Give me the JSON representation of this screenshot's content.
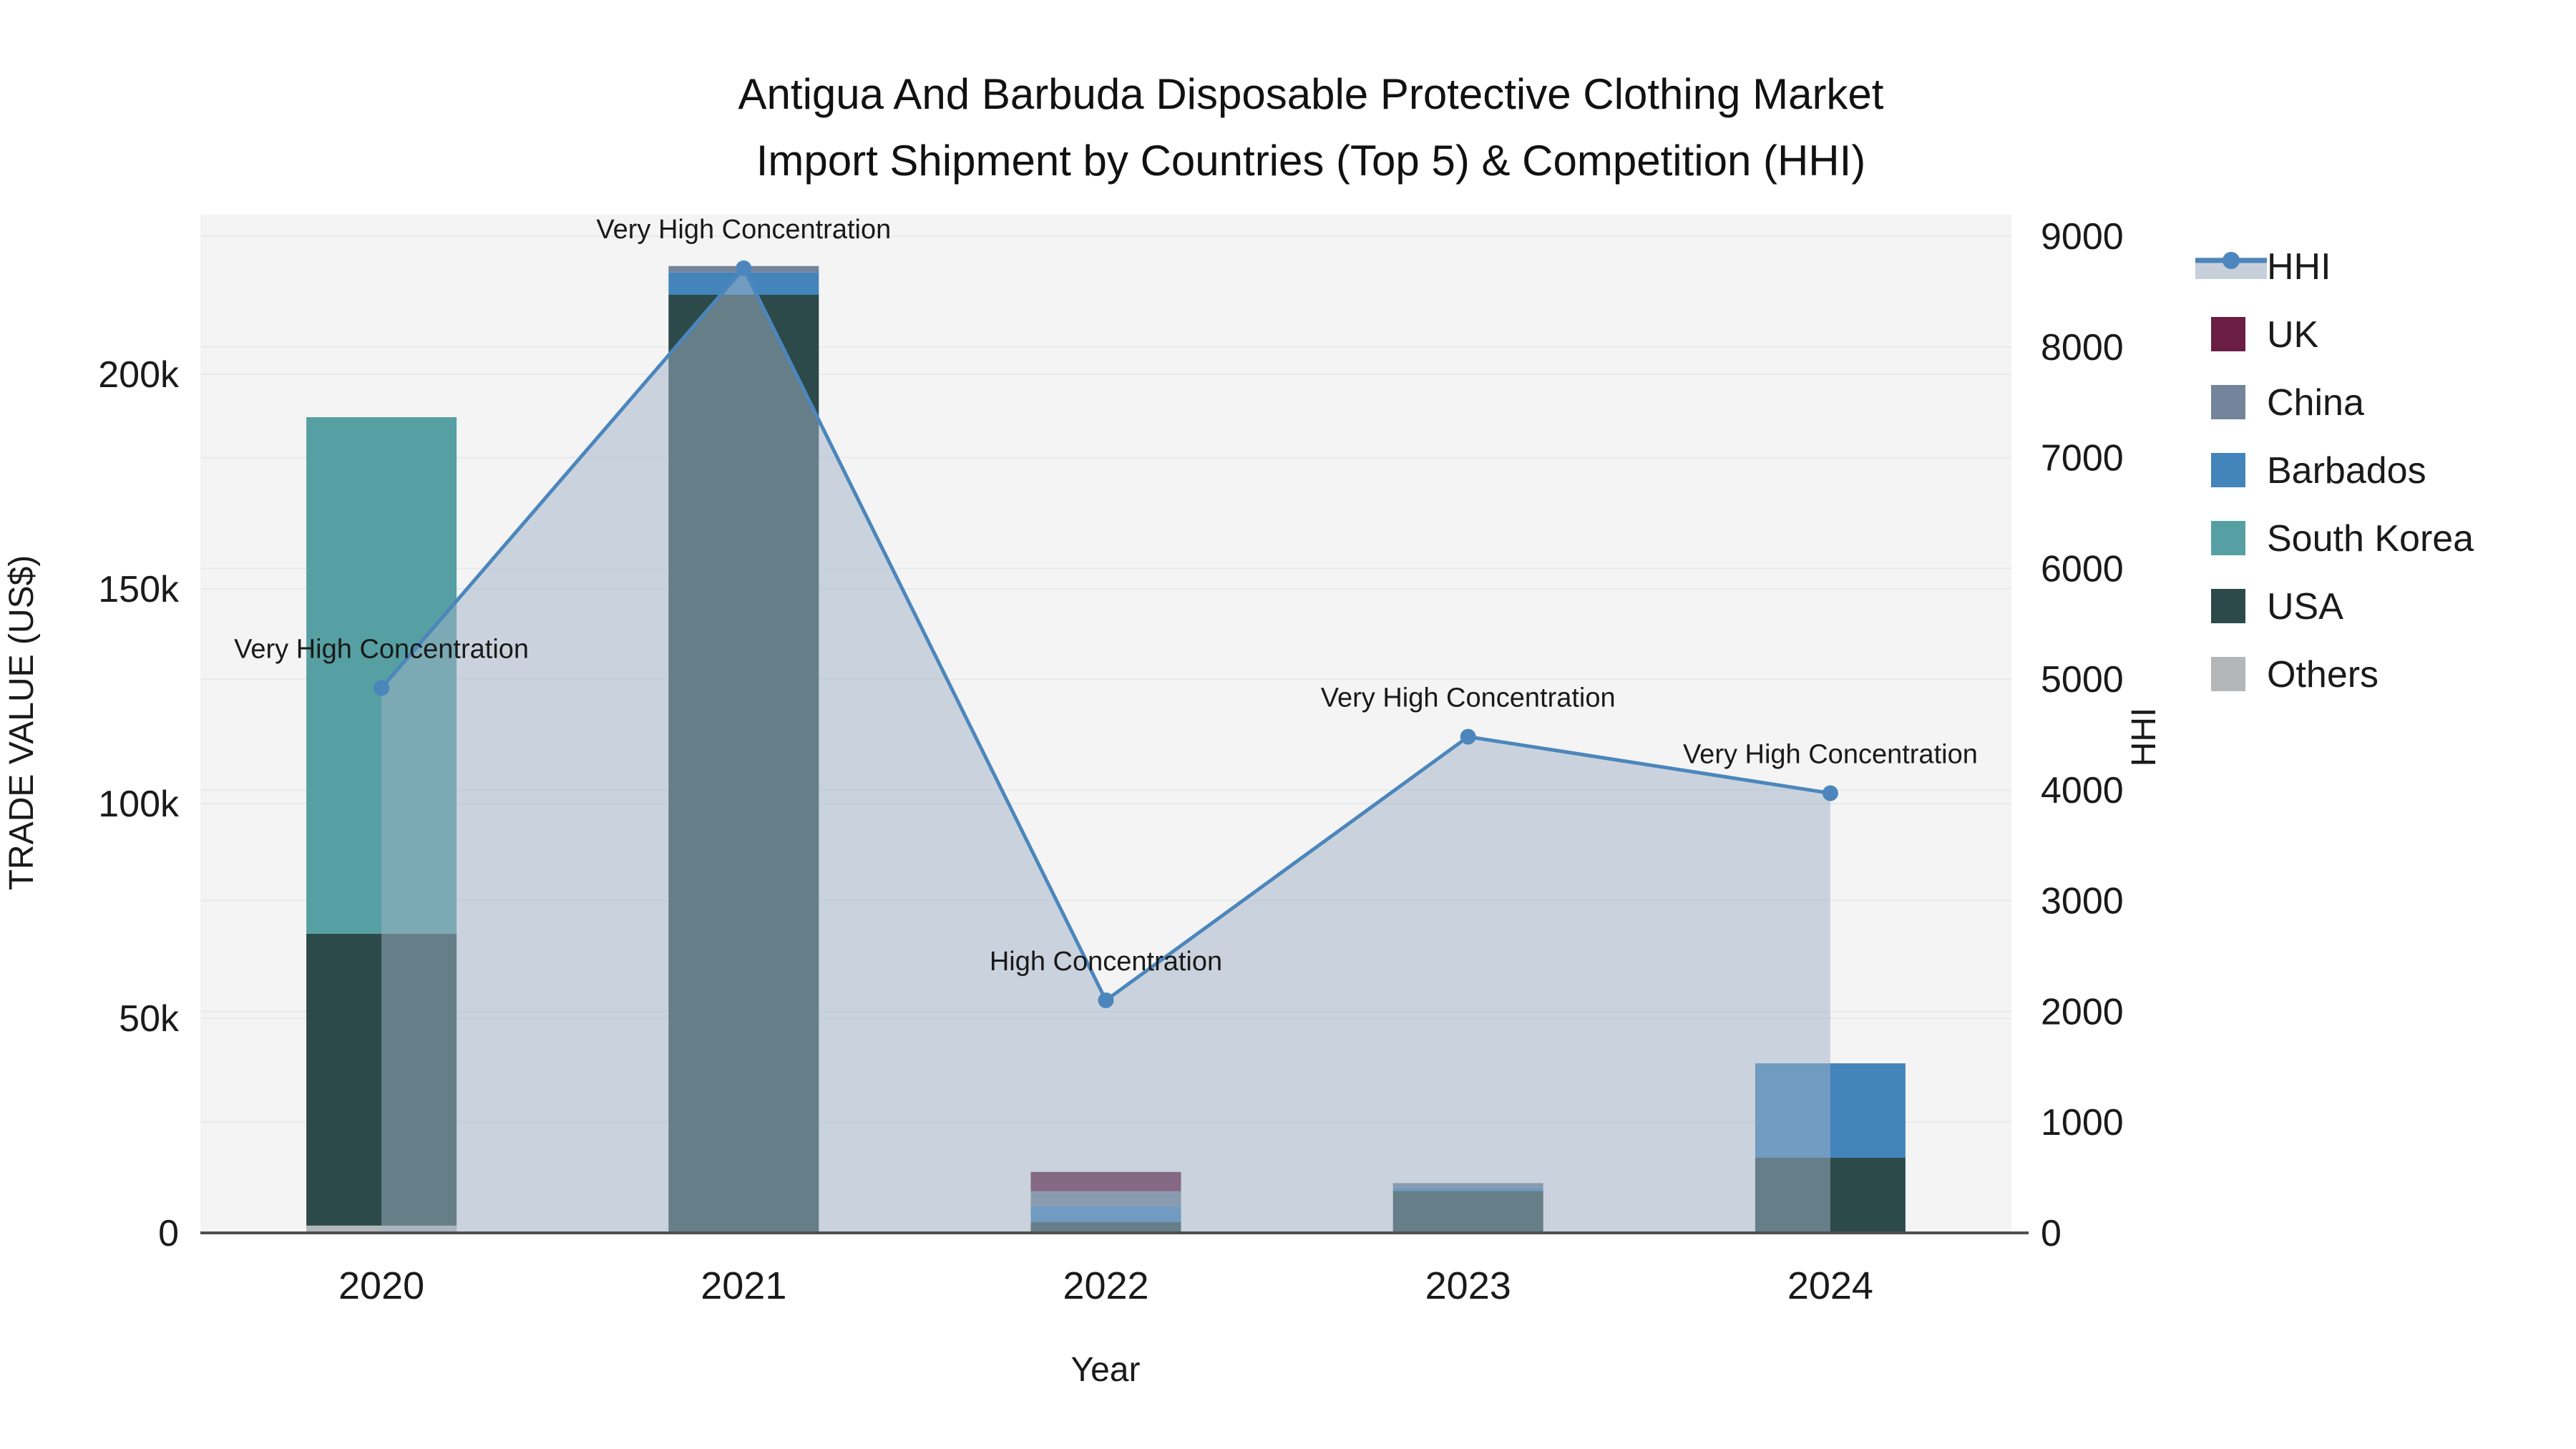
{
  "title": {
    "line1": "Antigua And Barbuda Disposable Protective Clothing Market",
    "line2": "Import Shipment by Countries (Top 5) & Competition (HHI)"
  },
  "axes": {
    "left": {
      "title": "TRADE VALUE (US$)",
      "tick_labels": [
        "0",
        "50k",
        "100k",
        "150k",
        "200k"
      ],
      "tick_values": [
        0,
        50000,
        100000,
        150000,
        200000
      ]
    },
    "right": {
      "title": "HHI",
      "tick_labels": [
        "0",
        "1000",
        "2000",
        "3000",
        "4000",
        "5000",
        "6000",
        "7000",
        "8000",
        "9000"
      ],
      "tick_values": [
        0,
        1000,
        2000,
        3000,
        4000,
        5000,
        6000,
        7000,
        8000,
        9000
      ]
    },
    "x": {
      "title": "Year",
      "categories": [
        "2020",
        "2021",
        "2022",
        "2023",
        "2024"
      ]
    }
  },
  "colors": {
    "hhi_line": "#4c86bc",
    "hhi_fill": "#a0b1c5",
    "uk": "#6b1e43",
    "china": "#74849a",
    "barbados": "#4384bb",
    "south_korea": "#56a0a3",
    "usa": "#2d4a4b",
    "others": "#b4b7ba",
    "plot_bg": "#f4f4f5",
    "gridline": "#e7e9ea",
    "axis_line": "#4d4f50"
  },
  "legend": [
    {
      "label": "HHI",
      "type": "line",
      "color": "#4c86bc"
    },
    {
      "label": "UK",
      "type": "swatch",
      "color": "#6b1e43"
    },
    {
      "label": "China",
      "type": "swatch",
      "color": "#74849a"
    },
    {
      "label": "Barbados",
      "type": "swatch",
      "color": "#4384bb"
    },
    {
      "label": "South Korea",
      "type": "swatch",
      "color": "#56a0a3"
    },
    {
      "label": "USA",
      "type": "swatch",
      "color": "#2d4a4b"
    },
    {
      "label": "Others",
      "type": "swatch",
      "color": "#b4b7ba"
    }
  ],
  "chart_data": {
    "type": "combo_stacked_bar_line",
    "title": "Antigua And Barbuda Disposable Protective Clothing Market Import Shipment by Countries (Top 5) & Competition (HHI)",
    "xlabel": "Year",
    "ylabel_left": "TRADE VALUE (US$)",
    "ylabel_right": "HHI",
    "ylim_left": [
      0,
      237000
    ],
    "ylim_right": [
      0,
      9200
    ],
    "grid": true,
    "legend_position": "right",
    "categories": [
      "2020",
      "2021",
      "2022",
      "2023",
      "2024"
    ],
    "bar_series_bottom_to_top": [
      {
        "name": "Others",
        "color": "#b4b7ba",
        "values": [
          1700,
          0,
          0,
          0,
          0
        ]
      },
      {
        "name": "USA",
        "color": "#2d4a4b",
        "values": [
          68000,
          218500,
          2500,
          9800,
          17500
        ]
      },
      {
        "name": "South Korea",
        "color": "#56a0a3",
        "values": [
          120300,
          0,
          0,
          0,
          0
        ]
      },
      {
        "name": "Barbados",
        "color": "#4384bb",
        "values": [
          0,
          5200,
          3700,
          800,
          22000
        ]
      },
      {
        "name": "China",
        "color": "#74849a",
        "values": [
          0,
          1500,
          3500,
          1000,
          0
        ]
      },
      {
        "name": "UK",
        "color": "#6b1e43",
        "values": [
          0,
          0,
          4500,
          0,
          0
        ]
      }
    ],
    "bar_totals": [
      190000,
      225200,
      14200,
      11600,
      39500
    ],
    "line_series": {
      "name": "HHI",
      "color": "#4c86bc",
      "fill_color": "#a0b1c5",
      "values": [
        4920,
        8710,
        2100,
        4480,
        3970
      ]
    },
    "annotations": [
      {
        "year": "2020",
        "text": "Very High Concentration"
      },
      {
        "year": "2021",
        "text": "Very High Concentration"
      },
      {
        "year": "2022",
        "text": "High Concentration"
      },
      {
        "year": "2023",
        "text": "Very High Concentration"
      },
      {
        "year": "2024",
        "text": "Very High Concentration"
      }
    ]
  }
}
